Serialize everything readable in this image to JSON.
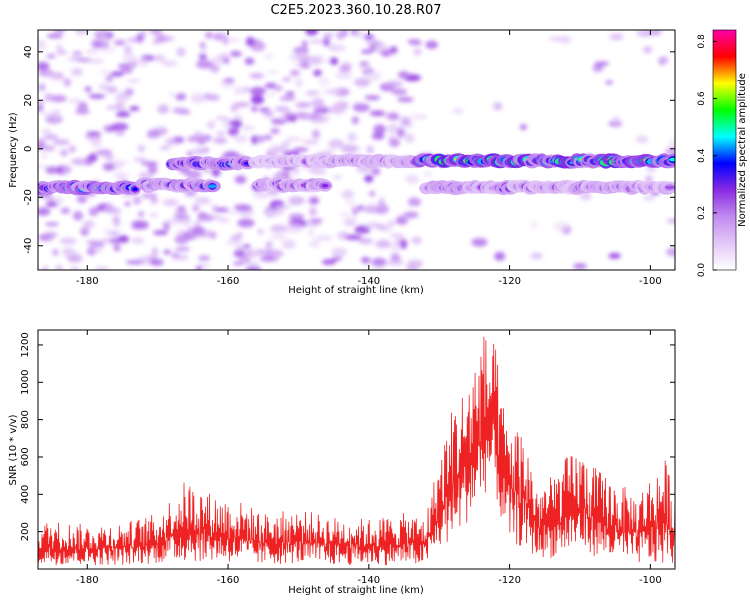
{
  "figure": {
    "title": "C2E5.2023.360.10.28.R07"
  },
  "chart_data": [
    {
      "type": "heatmap",
      "xlabel": "Height of straight line (km)",
      "ylabel": "Frequency (Hz)",
      "xlim": [
        -187,
        -96.5
      ],
      "ylim": [
        -50,
        49
      ],
      "xticks": [
        -180,
        -160,
        -140,
        -120,
        -100
      ],
      "yticks": [
        -40,
        -20,
        0,
        20,
        40
      ],
      "grid": false,
      "colorbar": {
        "label": "Normalized spectral amplitude",
        "range": [
          0,
          0.84
        ],
        "ticks": [
          0.0,
          0.2,
          0.4,
          0.6,
          0.8
        ],
        "colormap": [
          "#ffffff",
          "#e3c8f8",
          "#c28bf0",
          "#8a2be2",
          "#0000ff",
          "#00ffff",
          "#00ff00",
          "#ffff00",
          "#ff0000",
          "#ff00aa"
        ]
      },
      "features": [
        {
          "x_range": [
            -187,
            -173
          ],
          "y": -16,
          "peak": 0.55
        },
        {
          "x_range": [
            -172,
            -162
          ],
          "y": -15,
          "peak": 0.45
        },
        {
          "x_range": [
            -168,
            -157
          ],
          "y": -6,
          "peak": 0.5
        },
        {
          "x_range": [
            -156,
            -146
          ],
          "y": -15,
          "peak": 0.35
        },
        {
          "x_range": [
            -156,
            -133
          ],
          "y": -5,
          "peak": 0.3
        },
        {
          "x_range": [
            -133,
            -96.5
          ],
          "y": -5,
          "peak": 0.7
        },
        {
          "x_range": [
            -132,
            -97
          ],
          "y": -16,
          "peak": 0.35
        }
      ]
    },
    {
      "type": "line",
      "xlabel": "Height of straight line (km)",
      "ylabel": "SNR (10 * v/v)",
      "xlim": [
        -187,
        -96.5
      ],
      "ylim": [
        0,
        1280
      ],
      "xticks": [
        -180,
        -160,
        -140,
        -120,
        -100
      ],
      "yticks": [
        200,
        400,
        600,
        800,
        1000,
        1200
      ],
      "grid": false,
      "series": [
        {
          "color": "#ee2222",
          "envelope_x": [
            -187,
            -185,
            -180,
            -175,
            -170,
            -166,
            -162,
            -158,
            -155,
            -150,
            -145,
            -140,
            -135,
            -132,
            -130,
            -128,
            -126,
            -124,
            -123,
            -122,
            -121,
            -120,
            -118,
            -116,
            -114,
            -112,
            -110,
            -108,
            -106,
            -104,
            -102,
            -100,
            -98,
            -96.5
          ],
          "envelope_max": [
            250,
            260,
            240,
            250,
            300,
            480,
            400,
            360,
            300,
            320,
            280,
            270,
            300,
            280,
            600,
            900,
            1000,
            1280,
            1250,
            1200,
            900,
            800,
            750,
            450,
            500,
            600,
            650,
            550,
            500,
            450,
            400,
            500,
            600,
            450
          ],
          "envelope_min": [
            20,
            20,
            20,
            20,
            30,
            40,
            40,
            30,
            20,
            30,
            20,
            20,
            20,
            20,
            100,
            150,
            250,
            350,
            450,
            400,
            200,
            150,
            100,
            60,
            60,
            80,
            100,
            70,
            50,
            40,
            30,
            20,
            20,
            20
          ]
        }
      ]
    }
  ]
}
